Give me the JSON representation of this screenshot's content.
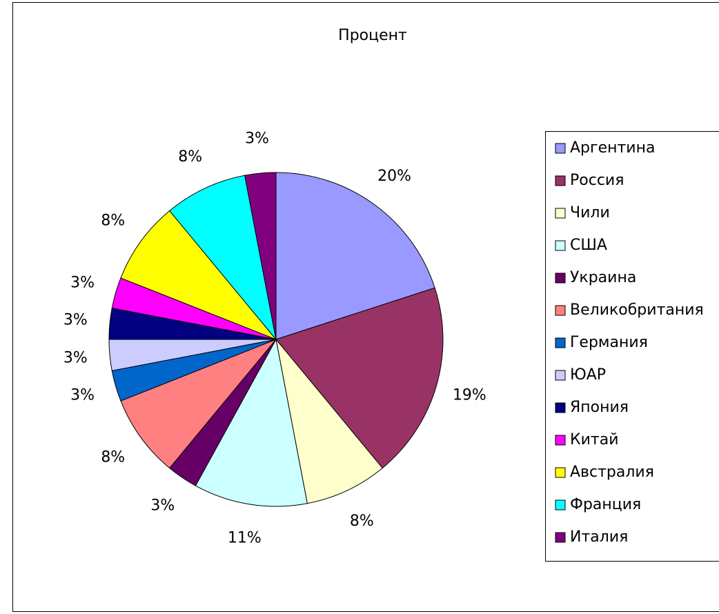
{
  "chart_data": {
    "type": "pie",
    "title": "Процент",
    "categories": [
      "Аргентина",
      "Россия",
      "Чили",
      "США",
      "Украина",
      "Великобритания",
      "Германия",
      "ЮАР",
      "Япония",
      "Китай",
      "Австралия",
      "Франция",
      "Италия"
    ],
    "values": [
      20,
      19,
      8,
      11,
      3,
      8,
      3,
      3,
      3,
      3,
      8,
      8,
      3
    ],
    "value_labels": [
      "20%",
      "19%",
      "8%",
      "11%",
      "3%",
      "8%",
      "3%",
      "3%",
      "3%",
      "3%",
      "8%",
      "8%",
      "3%"
    ],
    "colors": [
      "#9999ff",
      "#993366",
      "#ffffcc",
      "#ccffff",
      "#660066",
      "#ff8080",
      "#0066cc",
      "#ccccff",
      "#000080",
      "#ff00ff",
      "#ffff00",
      "#00ffff",
      "#800080"
    ],
    "legend": "right"
  }
}
